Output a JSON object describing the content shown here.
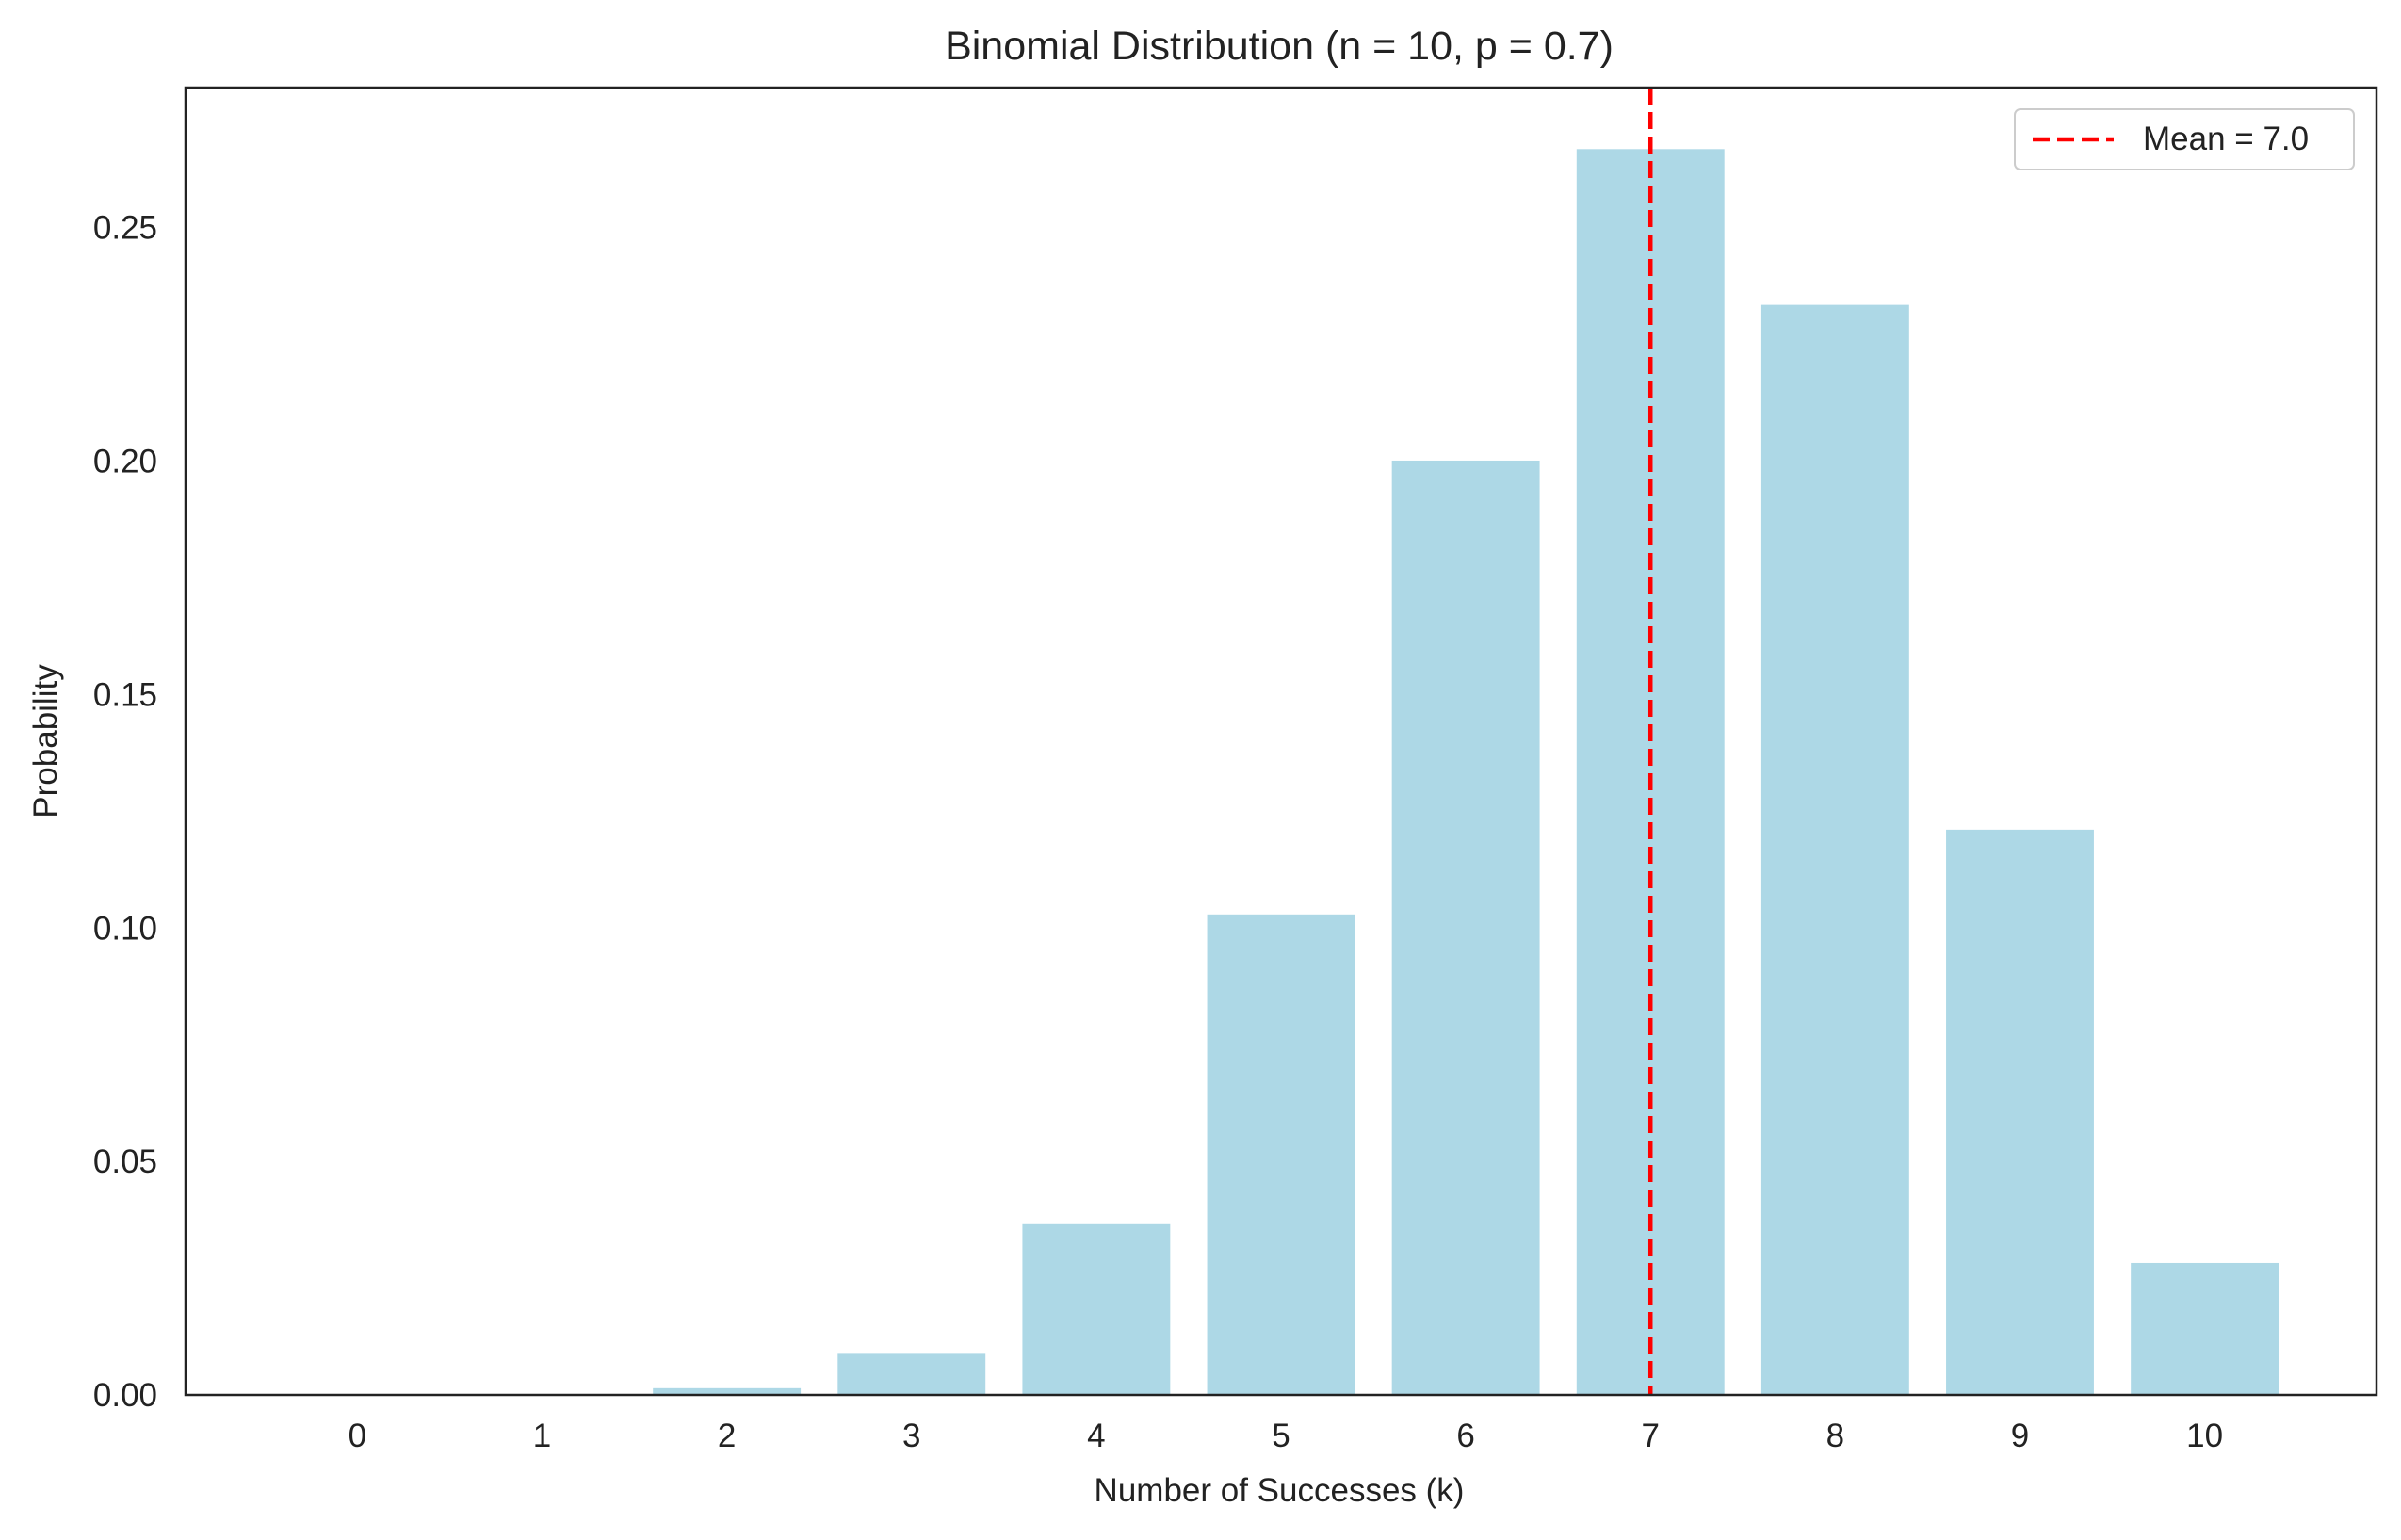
{
  "chart_data": {
    "type": "bar",
    "title": "Binomial Distribution (n = 10, p = 0.7)",
    "xlabel": "Number of Successes (k)",
    "ylabel": "Probability",
    "categories": [
      "0",
      "1",
      "2",
      "3",
      "4",
      "5",
      "6",
      "7",
      "8",
      "9",
      "10"
    ],
    "x": [
      0,
      1,
      2,
      3,
      4,
      5,
      6,
      7,
      8,
      9,
      10
    ],
    "values": [
      5.9e-06,
      0.0001378,
      0.0014467,
      0.0090017,
      0.0367569,
      0.1029193,
      0.2001209,
      0.2668279,
      0.2334744,
      0.1210608,
      0.0282475
    ],
    "ylim": [
      0,
      0.28
    ],
    "xlim": [
      -0.93,
      10.93
    ],
    "yticks": [
      0.0,
      0.05,
      0.1,
      0.15,
      0.2,
      0.25
    ],
    "ytick_labels": [
      "0.00",
      "0.05",
      "0.10",
      "0.15",
      "0.20",
      "0.25"
    ],
    "bar_color": "#add8e6",
    "mean": {
      "value": 7.0,
      "label": "Mean = 7.0",
      "color": "#ff0000",
      "style": "dashed"
    },
    "legend": {
      "placement": "top-right",
      "entries": [
        "Mean = 7.0"
      ]
    },
    "grid": false
  }
}
